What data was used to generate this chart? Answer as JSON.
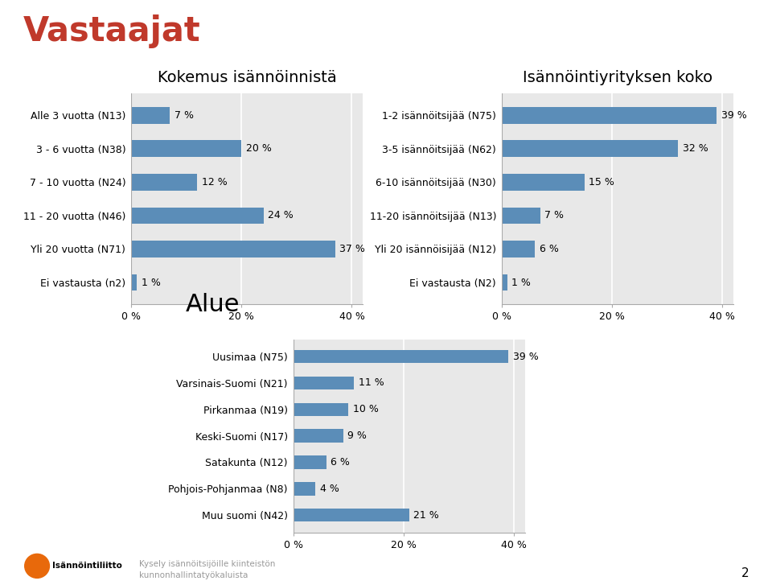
{
  "title_main": "Vastaajat",
  "title_main_color": "#c0392b",
  "bar_color": "#5b8db8",
  "chart_bg_color": "#e8e8e8",
  "chart1": {
    "title": "Kokemus isännöinnistä",
    "categories": [
      "Alle 3 vuotta (N13)",
      "3 - 6 vuotta (N38)",
      "7 - 10 vuotta (N24)",
      "11 - 20 vuotta (N46)",
      "Yli 20 vuotta (N71)",
      "Ei vastausta (n2)"
    ],
    "values": [
      7,
      20,
      12,
      24,
      37,
      1
    ],
    "xlim": 42
  },
  "chart2": {
    "title": "Isännöintiyrityksen koko",
    "categories": [
      "1-2 isännöitsijää (N75)",
      "3-5 isännöitsijää (N62)",
      "6-10 isännöitsijää (N30)",
      "11-20 isännöitsijää (N13)",
      "Yli 20 isännöisijää (N12)",
      "Ei vastausta (N2)"
    ],
    "values": [
      39,
      32,
      15,
      7,
      6,
      1
    ],
    "xlim": 42
  },
  "chart3": {
    "title": "Alue",
    "categories": [
      "Uusimaa (N75)",
      "Varsinais-Suomi (N21)",
      "Pirkanmaa (N19)",
      "Keski-Suomi (N17)",
      "Satakunta (N12)",
      "Pohjois-Pohjanmaa (N8)",
      "Muu suomi (N42)"
    ],
    "values": [
      39,
      11,
      10,
      9,
      6,
      4,
      21
    ],
    "xlim": 42
  },
  "footer_text": "Kysely isännöitsijöille kiinteistön\nkunnonhallintatyökaluista",
  "page_number": "2",
  "logo_color": "#e8690b",
  "logo_text": "Isännöintiliitto"
}
